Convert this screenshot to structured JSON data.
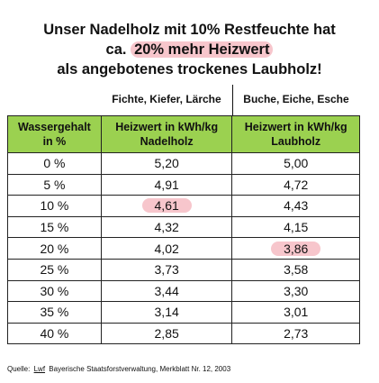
{
  "title": {
    "line1": "Unser Nadelholz mit 10% Restfeuchte hat",
    "line2_prefix": "ca.",
    "line2_highlight": "20% mehr Heizwert",
    "line3": "als angebotenes trockenes Laubholz!"
  },
  "groups": [
    "Fichte, Kiefer, Lärche",
    "Buche, Eiche, Esche"
  ],
  "table": {
    "header": [
      [
        "Wassergehalt",
        "in %"
      ],
      [
        "Heizwert in kWh/kg",
        "Nadelholz"
      ],
      [
        "Heizwert in kWh/kg",
        "Laubholz"
      ]
    ],
    "rows": [
      [
        "0 %",
        "5,20",
        "5,00"
      ],
      [
        "5 %",
        "4,91",
        "4,72"
      ],
      [
        "10 %",
        "4,61",
        "4,43"
      ],
      [
        "15 %",
        "4,32",
        "4,15"
      ],
      [
        "20 %",
        "4,02",
        "3,86"
      ],
      [
        "25 %",
        "3,73",
        "3,58"
      ],
      [
        "30 %",
        "3,44",
        "3,30"
      ],
      [
        "35 %",
        "3,14",
        "3,01"
      ],
      [
        "40 %",
        "2,85",
        "2,73"
      ]
    ]
  },
  "source": {
    "prefix": "Quelle:",
    "link": "Lwf",
    "rest": "Bayerische Staatsforstverwaltung, Merkblatt Nr. 12, 2003"
  }
}
